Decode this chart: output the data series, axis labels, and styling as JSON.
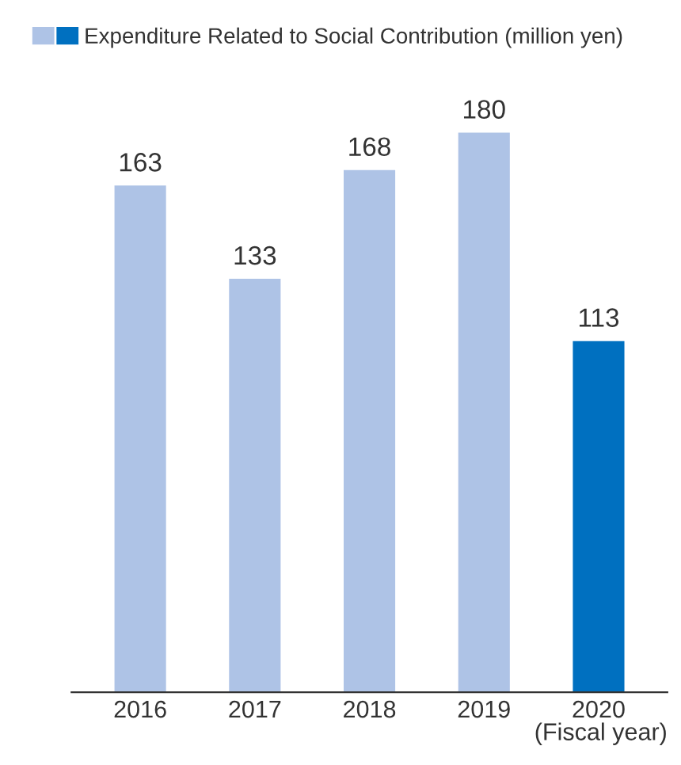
{
  "chart_data": {
    "type": "bar",
    "categories": [
      "2016",
      "2017",
      "2018",
      "2019",
      "2020"
    ],
    "series": [
      {
        "name": "Expenditure Related to Social Contribution (million yen)",
        "colors": [
          "#aec3e6",
          "#aec3e6",
          "#aec3e6",
          "#aec3e6",
          "#0070c0"
        ],
        "values": [
          163,
          133,
          168,
          180,
          113
        ]
      }
    ],
    "xlabel": "(Fiscal year)",
    "data_labels": true,
    "legend": "top left",
    "grid": false
  }
}
